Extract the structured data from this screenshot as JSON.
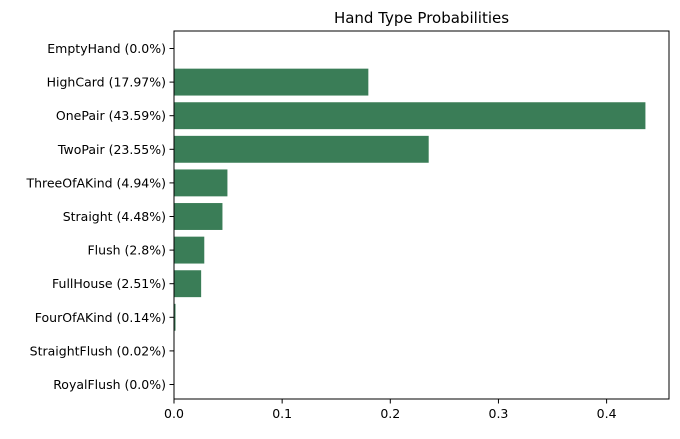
{
  "chart_data": {
    "type": "bar",
    "orientation": "horizontal",
    "title": "Hand Type Probabilities",
    "xlabel": "",
    "ylabel": "",
    "categories": [
      "EmptyHand (0.0%)",
      "HighCard (17.97%)",
      "OnePair (43.59%)",
      "TwoPair (23.55%)",
      "ThreeOfAKind (4.94%)",
      "Straight (4.48%)",
      "Flush (2.8%)",
      "FullHouse (2.51%)",
      "FourOfAKind (0.14%)",
      "StraightFlush (0.02%)",
      "RoyalFlush (0.0%)"
    ],
    "values": [
      0.0,
      0.1797,
      0.4359,
      0.2355,
      0.0494,
      0.0448,
      0.028,
      0.0251,
      0.0014,
      0.0002,
      0.0
    ],
    "xlim": [
      0,
      0.4577
    ],
    "xticks": [
      0.0,
      0.1,
      0.2,
      0.3,
      0.4
    ],
    "xtick_labels": [
      "0.0",
      "0.1",
      "0.2",
      "0.3",
      "0.4"
    ],
    "grid": false,
    "bar_color": "#3a7d57"
  }
}
